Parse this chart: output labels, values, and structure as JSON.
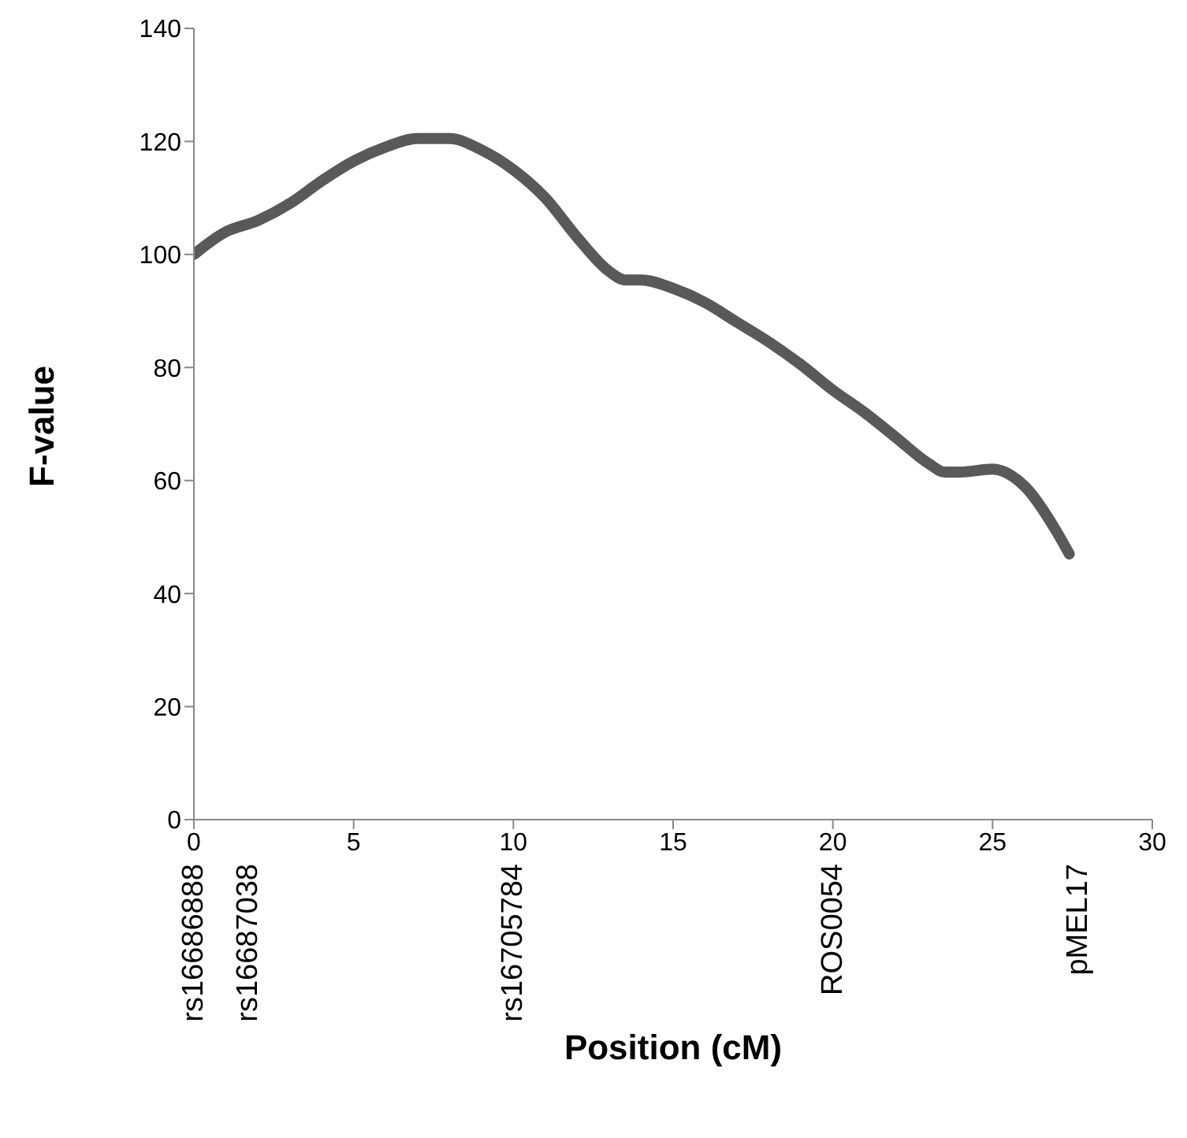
{
  "chart_data": {
    "type": "line",
    "xlabel": "Position (cM)",
    "ylabel": "F-value",
    "x": [
      0,
      1,
      2,
      3,
      4,
      5,
      6,
      7,
      8,
      9,
      10,
      11,
      12,
      13,
      13.5,
      14,
      15,
      16,
      17,
      18,
      19,
      20,
      21,
      22,
      23,
      23.5,
      24,
      25,
      26,
      27,
      27.4
    ],
    "series": [
      {
        "color": "#595959",
        "values": [
          100,
          104,
          106,
          109,
          113,
          116.5,
          119,
          120.5,
          120.5,
          118.5,
          115,
          110,
          103,
          97,
          95.5,
          95.5,
          94,
          91.5,
          88,
          84.5,
          80.5,
          76,
          72,
          67.5,
          63,
          61.5,
          61.5,
          62,
          59,
          51,
          47
        ]
      }
    ],
    "xlim": [
      0,
      30
    ],
    "xticks": [
      0,
      5,
      10,
      15,
      20,
      25,
      30
    ],
    "ylim": [
      0,
      140
    ],
    "yticks": [
      0,
      20,
      40,
      60,
      80,
      100,
      120,
      140
    ],
    "grid": false,
    "legend": false,
    "marker": "none",
    "line_style": "solid",
    "annotations": [
      "rs16686888",
      "rs16687038",
      "rs16705784",
      "ROS0054",
      "pMEL17"
    ]
  }
}
